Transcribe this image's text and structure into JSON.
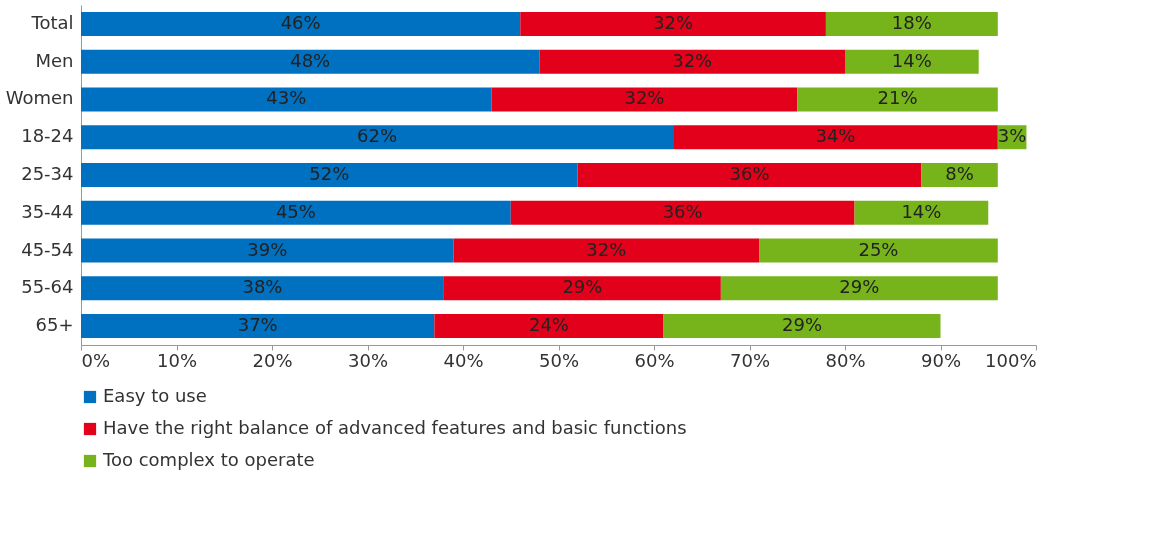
{
  "chart_data": {
    "type": "bar",
    "orientation": "horizontal",
    "stacked": true,
    "categories": [
      "Total",
      "Men",
      "Women",
      "18-24",
      "25-34",
      "35-44",
      "45-54",
      "55-64",
      "65+"
    ],
    "series": [
      {
        "name": "Easy to use",
        "color": "#0070c0",
        "values": [
          46,
          48,
          43,
          62,
          52,
          45,
          39,
          38,
          37
        ],
        "value_labels": [
          "46%",
          "48%",
          "43%",
          "62%",
          "52%",
          "45%",
          "39%",
          "38%",
          "37%"
        ]
      },
      {
        "name": "Have the right balance of advanced features and basic functions",
        "color": "#e2001a",
        "values": [
          32,
          32,
          32,
          34,
          36,
          36,
          32,
          29,
          24
        ],
        "value_labels": [
          "32%",
          "32%",
          "32%",
          "34%",
          "36%",
          "36%",
          "32%",
          "29%",
          "24%"
        ]
      },
      {
        "name": "Too complex to operate",
        "color": "#77b41c",
        "values": [
          18,
          14,
          21,
          3,
          8,
          14,
          25,
          29,
          29
        ],
        "value_labels": [
          "18%",
          "14%",
          "21%",
          "3%",
          "8%",
          "14%",
          "25%",
          "29%",
          "29%"
        ]
      }
    ],
    "xlim": [
      0,
      100
    ],
    "xticks": [
      {
        "value": 0,
        "label": "0%"
      },
      {
        "value": 10,
        "label": "10%"
      },
      {
        "value": 20,
        "label": "20%"
      },
      {
        "value": 30,
        "label": "30%"
      },
      {
        "value": 40,
        "label": "40%"
      },
      {
        "value": 50,
        "label": "50%"
      },
      {
        "value": 60,
        "label": "60%"
      },
      {
        "value": 70,
        "label": "70%"
      },
      {
        "value": 80,
        "label": "80%"
      },
      {
        "value": 90,
        "label": "90%"
      },
      {
        "value": 100,
        "label": "100%"
      }
    ],
    "grid": false,
    "legend": "bottom"
  }
}
